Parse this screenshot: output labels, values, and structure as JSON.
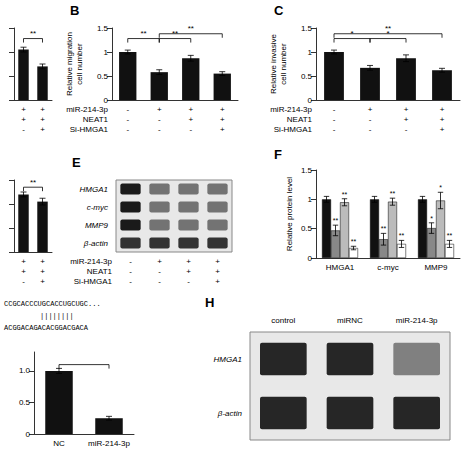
{
  "chart_data": [
    {
      "type": "bar",
      "categories": [
        null,
        null
      ],
      "values": [
        1.05,
        0.7
      ],
      "errors": [
        0.05,
        0.05
      ],
      "color": "#111111",
      "ylim": [
        0,
        1.5
      ],
      "yticks": [
        0,
        0.5,
        1,
        1.5
      ],
      "tick_labels": false,
      "grid": false,
      "conditions": [
        [
          "+",
          "+"
        ],
        [
          "+",
          "+"
        ],
        [
          "-",
          "+"
        ]
      ],
      "annotations": [
        {
          "x1": 0,
          "x2": 1,
          "y": 1.28,
          "text": "**"
        }
      ]
    },
    {
      "type": "bar",
      "title": "B",
      "ylabel": "Relative migration\ncell number",
      "categories": [
        null,
        null,
        null,
        null
      ],
      "values": [
        1.0,
        0.58,
        0.87,
        0.55
      ],
      "errors": [
        0.04,
        0.05,
        0.06,
        0.04
      ],
      "color": "#111111",
      "ylim": [
        0,
        1.5
      ],
      "yticks": [
        0,
        0.5,
        1,
        1.5
      ],
      "grid": false,
      "condition_labels": [
        "miR-214-3p",
        "NEAT1",
        "Si-HMGA1"
      ],
      "conditions": [
        [
          "-",
          "+",
          "+",
          "+"
        ],
        [
          "-",
          "-",
          "+",
          "+"
        ],
        [
          "-",
          "-",
          "-",
          "+"
        ]
      ],
      "annotations": [
        {
          "x1": 0,
          "x2": 1,
          "y": 1.28,
          "text": "**"
        },
        {
          "x1": 1,
          "x2": 2,
          "y": 1.28,
          "text": "**"
        },
        {
          "x1": 1,
          "x2": 3,
          "y": 1.38,
          "text": "**"
        }
      ]
    },
    {
      "type": "bar",
      "title": "C",
      "ylabel": "Relative invasive\ncell number",
      "categories": [
        null,
        null,
        null,
        null
      ],
      "values": [
        1.0,
        0.67,
        0.87,
        0.62
      ],
      "errors": [
        0.04,
        0.05,
        0.07,
        0.04
      ],
      "color": "#111111",
      "ylim": [
        0,
        1.5
      ],
      "yticks": [
        0,
        0.5,
        1,
        1.5
      ],
      "grid": false,
      "condition_labels": [
        "miR-214-3p",
        "NEAT1",
        "Si-HMGA1"
      ],
      "conditions": [
        [
          "-",
          "+",
          "+",
          "+"
        ],
        [
          "-",
          "-",
          "+",
          "+"
        ],
        [
          "-",
          "-",
          "-",
          "+"
        ]
      ],
      "annotations": [
        {
          "x1": 0,
          "x2": 1,
          "y": 1.28,
          "text": "*"
        },
        {
          "x1": 1,
          "x2": 2,
          "y": 1.28,
          "text": "*"
        },
        {
          "x1": 0,
          "x2": 3,
          "y": 1.38,
          "text": "**"
        }
      ]
    },
    {
      "type": "bar",
      "categories": [
        null,
        null
      ],
      "values": [
        1.2,
        1.05
      ],
      "errors": [
        0.05,
        0.07
      ],
      "color": "#111111",
      "ylim": [
        0,
        1.5
      ],
      "yticks": [
        0,
        0.5,
        1,
        1.5
      ],
      "tick_labels": false,
      "grid": false,
      "conditions": [
        [
          "+",
          "+"
        ],
        [
          "+",
          "+"
        ],
        [
          "-",
          "+"
        ]
      ],
      "annotations": [
        {
          "x1": 0,
          "x2": 1,
          "y": 1.35,
          "text": "**"
        }
      ]
    },
    {
      "type": "heatmap",
      "title": "E",
      "categories": [
        null,
        null,
        null,
        null
      ],
      "rows": [
        "HMGA1",
        "c-myc",
        "MMP9",
        "β-actin"
      ],
      "values": [
        [
          0.1,
          0.45,
          0.45,
          0.45
        ],
        [
          0.1,
          0.45,
          0.45,
          0.45
        ],
        [
          0.1,
          0.45,
          0.45,
          0.45
        ],
        [
          0.2,
          0.2,
          0.2,
          0.2
        ]
      ],
      "condition_labels": [
        "miR-214-3p",
        "NEAT1",
        "Si-HMGA1"
      ],
      "conditions": [
        [
          "-",
          "+",
          "+",
          "+"
        ],
        [
          "-",
          "-",
          "+",
          "+"
        ],
        [
          "-",
          "-",
          "-",
          "+"
        ]
      ]
    },
    {
      "type": "bar",
      "title": "F",
      "ylabel": "Relative protein level",
      "categories": [
        "HMGA1",
        "c-myc",
        "MMP9"
      ],
      "series": [
        {
          "color": "#111111",
          "values": [
            1.0,
            1.0,
            1.0
          ],
          "errors": [
            0.05,
            0.05,
            0.05
          ]
        },
        {
          "color": "#888888",
          "values": [
            0.47,
            0.32,
            0.51
          ],
          "errors": [
            0.09,
            0.1,
            0.09
          ],
          "stars": [
            "**",
            "**",
            "*"
          ]
        },
        {
          "color": "#bbbbbb",
          "values": [
            0.95,
            0.96,
            0.98
          ],
          "errors": [
            0.06,
            0.06,
            0.14
          ],
          "stars": [
            "**",
            "**",
            "*"
          ]
        },
        {
          "color": "#ffffff",
          "values": [
            0.17,
            0.24,
            0.24
          ],
          "errors": [
            0.03,
            0.06,
            0.06
          ],
          "stars": [
            "**",
            "**",
            "**"
          ]
        }
      ],
      "ylim": [
        0,
        1.5
      ],
      "yticks": [
        0,
        0.5,
        1,
        1.5
      ],
      "grid": false
    },
    {
      "type": "bar",
      "categories": [
        "NC",
        "miR-214-3p"
      ],
      "values": [
        1.0,
        0.25
      ],
      "errors": [
        0.04,
        0.03
      ],
      "color": "#111111",
      "ylim": [
        0,
        1.3
      ],
      "yticks": [
        0,
        0.5,
        {
          "value": 1,
          "label": "1.0"
        }
      ],
      "grid": false,
      "sequence": [
        "CCGCACCCUGCACCUGCUGC...",
        "||||||||",
        "ACGGACAGACACGGACGACA"
      ],
      "annotations": [
        {
          "x1": 0,
          "x2": 1,
          "y": 1.1
        }
      ]
    },
    {
      "type": "heatmap",
      "title": "H",
      "categories": [
        "control",
        "miRNC",
        "miR-214-3p"
      ],
      "rows": [
        "HMGA1",
        "β-actin"
      ],
      "values": [
        [
          0.15,
          0.15,
          0.5
        ],
        [
          0.15,
          0.15,
          0.15
        ]
      ]
    }
  ]
}
